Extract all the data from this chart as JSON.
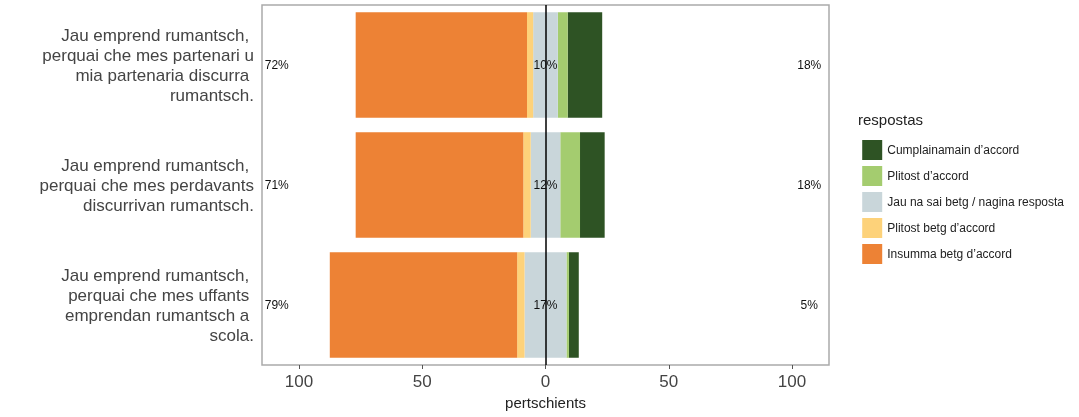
{
  "chart_data": {
    "type": "bar",
    "orientation": "horizontal",
    "xlabel": "pertschients",
    "legend_title": "respostas",
    "legend": "right",
    "grid": false,
    "categories": [
      "Jau emprend rumantsch, perquai che mes partenari u mia partenaria discurra rumantsch.",
      "Jau emprend rumantsch, perquai che mes perdavants discurrivan rumantsch.",
      "Jau emprend rumantsch, perquai che mes uffants emprendan rumantsch a scola."
    ],
    "xlim": [
      -115,
      115
    ],
    "xticks": [
      {
        "value": -100,
        "label": "100"
      },
      {
        "value": -50,
        "label": "50"
      },
      0,
      50,
      100
    ],
    "series": [
      {
        "name": "Cumplainamain d’accord",
        "color": "#2e5324",
        "base": [
          9,
          14,
          9.5
        ],
        "values": [
          14,
          10,
          4
        ]
      },
      {
        "name": "Plitost d’accord",
        "color": "#a4cc6f",
        "base": [
          5,
          6,
          8.5
        ],
        "values": [
          4,
          8,
          1
        ]
      },
      {
        "name": "Jau na sai betg / nagina resposta",
        "color": "#c9d6da",
        "base": [
          -5,
          -6,
          -8.5
        ],
        "values": [
          10,
          12,
          17
        ]
      },
      {
        "name": "Plitost betg d’accord",
        "color": "#fdd27a",
        "base": [
          -7.5,
          -9,
          -11.5
        ],
        "values": [
          2.5,
          3,
          3
        ]
      },
      {
        "name": "Insumma betg d’accord",
        "color": "#ed8235",
        "base": [
          -77,
          -77,
          -87.5
        ],
        "values": [
          69.5,
          68,
          76
        ]
      }
    ],
    "ref_lines": [
      {
        "axis": "x",
        "value": 0,
        "color": "#000000"
      }
    ],
    "annotations": [
      "72%",
      "10%",
      "18%",
      "71%",
      "12%",
      "18%",
      "79%",
      "17%",
      "5%"
    ]
  }
}
